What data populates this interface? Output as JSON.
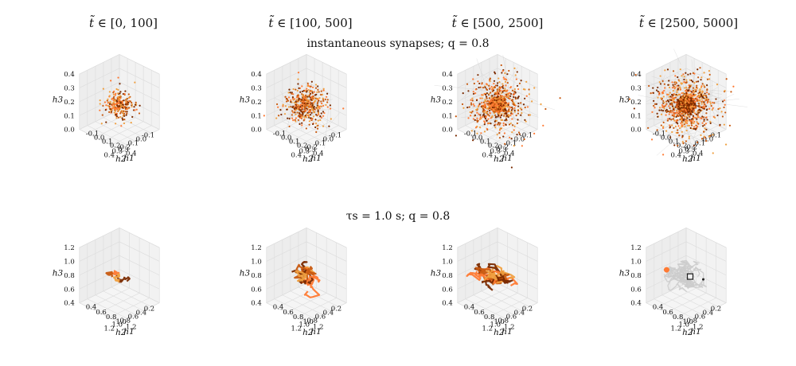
{
  "columns": [
    {
      "pre": "",
      "var": "t̃",
      "range": "∈ [0, 100]"
    },
    {
      "pre": "",
      "var": "t̃",
      "range": "∈ [100, 500]"
    },
    {
      "pre": "",
      "var": "t̃",
      "range": "∈ [500, 2500]"
    },
    {
      "pre": "",
      "var": "t̃",
      "range": "∈ [2500, 5000]"
    }
  ],
  "rows": [
    {
      "title": "instantaneous synapses; q = 0.8"
    },
    {
      "title": "τs = 1.0 s; q = 0.8"
    }
  ],
  "axes_labels": {
    "x": "h1",
    "y": "h2",
    "z": "h3"
  },
  "chart_data": [
    {
      "type": "scatter",
      "row": 0,
      "style": "3d-point-cloud",
      "columns": [
        "t̃ ∈ [0, 100]",
        "t̃ ∈ [100, 500]",
        "t̃ ∈ [500, 2500]",
        "t̃ ∈ [2500, 5000]"
      ],
      "x_ticks": [
        "-0.1",
        "0.0",
        "0.1",
        "0.2",
        "0.3",
        "0.4"
      ],
      "y_ticks": [
        "-0.1",
        "0.0",
        "0.1",
        "0.2",
        "0.3",
        "0.4"
      ],
      "z_ticks": [
        "0.0",
        "0.1",
        "0.2",
        "0.3",
        "0.4"
      ],
      "xlim": [
        -0.1,
        0.4
      ],
      "ylim": [
        -0.1,
        0.4
      ],
      "zlim": [
        0.0,
        0.4
      ],
      "cloud_center": [
        0.15,
        0.15,
        0.18
      ],
      "cloud_spread": [
        0.06,
        0.09,
        0.12,
        0.13
      ],
      "dense_core": [
        false,
        false,
        true,
        true
      ],
      "core_color": [
        "",
        "",
        "#ff7a33",
        "#7a2a00"
      ]
    },
    {
      "type": "line",
      "row": 1,
      "style": "3d-trajectory",
      "columns": [
        "t̃ ∈ [0, 100]",
        "t̃ ∈ [100, 500]",
        "t̃ ∈ [500, 2500]",
        "t̃ ∈ [2500, 5000]"
      ],
      "x_ticks": [
        "0.4",
        "0.6",
        "0.8",
        "1.0",
        "1.2"
      ],
      "y_ticks": [
        "0.2",
        "0.4",
        "0.6",
        "0.8",
        "1.0",
        "1.2"
      ],
      "z_ticks": [
        "0.4",
        "0.6",
        "0.8",
        "1.0",
        "1.2"
      ],
      "xlim": [
        0.4,
        1.2
      ],
      "ylim": [
        0.2,
        1.2
      ],
      "zlim": [
        0.4,
        1.2
      ],
      "traj_center": [
        0.8,
        0.75,
        0.8
      ],
      "traj_spread": [
        0.12,
        0.22,
        0.25,
        0.26
      ],
      "highlighted": [
        true,
        true,
        true,
        false
      ]
    }
  ],
  "colors": {
    "dark": "#7a2a00",
    "mid": "#c85a10",
    "orange": "#ff7a33",
    "light": "#f0a040",
    "gray": "#cccccc"
  }
}
